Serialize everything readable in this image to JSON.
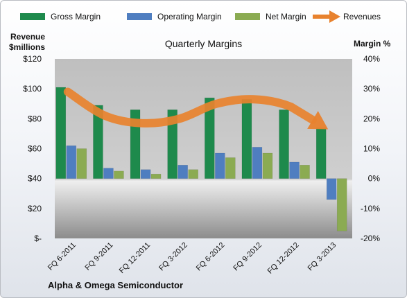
{
  "chart_data": {
    "type": "bar",
    "title": "Quarterly Margins",
    "categories": [
      "FQ 6-2011",
      "FQ 9-2011",
      "FQ 12-2011",
      "FQ 3-2012",
      "FQ 6-2012",
      "FQ 9-2012",
      "FQ 12-2012",
      "FQ 3-2013"
    ],
    "y_left": {
      "label_line1": "Revenue",
      "label_line2": "$millions",
      "ylim": [
        0,
        120
      ],
      "ticks": [
        {
          "value": 0,
          "label": "$-"
        },
        {
          "value": 20,
          "label": "$20"
        },
        {
          "value": 40,
          "label": "$40"
        },
        {
          "value": 60,
          "label": "$60"
        },
        {
          "value": 80,
          "label": "$80"
        },
        {
          "value": 100,
          "label": "$100"
        },
        {
          "value": 120,
          "label": "$120"
        }
      ]
    },
    "y_right": {
      "label": "Margin %",
      "ylim": [
        -20,
        40
      ],
      "ticks": [
        {
          "value": -20,
          "label": "-20%"
        },
        {
          "value": -10,
          "label": "-10%"
        },
        {
          "value": 0,
          "label": "0%"
        },
        {
          "value": 10,
          "label": "10%"
        },
        {
          "value": 20,
          "label": "20%"
        },
        {
          "value": 30,
          "label": "30%"
        },
        {
          "value": 40,
          "label": "40%"
        }
      ]
    },
    "series": [
      {
        "name": "Gross Margin",
        "axis": "right",
        "kind": "bar",
        "color": "#1e8a4c",
        "values": [
          30.5,
          24.5,
          23,
          23,
          27,
          26.5,
          23,
          17
        ]
      },
      {
        "name": "Operating Margin",
        "axis": "right",
        "kind": "bar",
        "color": "#4f7ec0",
        "values": [
          11,
          3.5,
          3,
          4.5,
          8.5,
          10.5,
          5.5,
          -7
        ]
      },
      {
        "name": "Net Margin",
        "axis": "right",
        "kind": "bar",
        "color": "#8bab52",
        "values": [
          10,
          2.5,
          1.5,
          3,
          7,
          8.5,
          4.5,
          -17.5
        ]
      },
      {
        "name": "Revenues",
        "axis": "left",
        "kind": "line-arrow",
        "color": "#e8822e",
        "values": [
          98,
          82,
          77,
          80,
          90,
          93,
          88,
          73
        ]
      }
    ],
    "legend_position": "top",
    "grid": false,
    "footer": "Alpha & Omega Semiconductor"
  }
}
